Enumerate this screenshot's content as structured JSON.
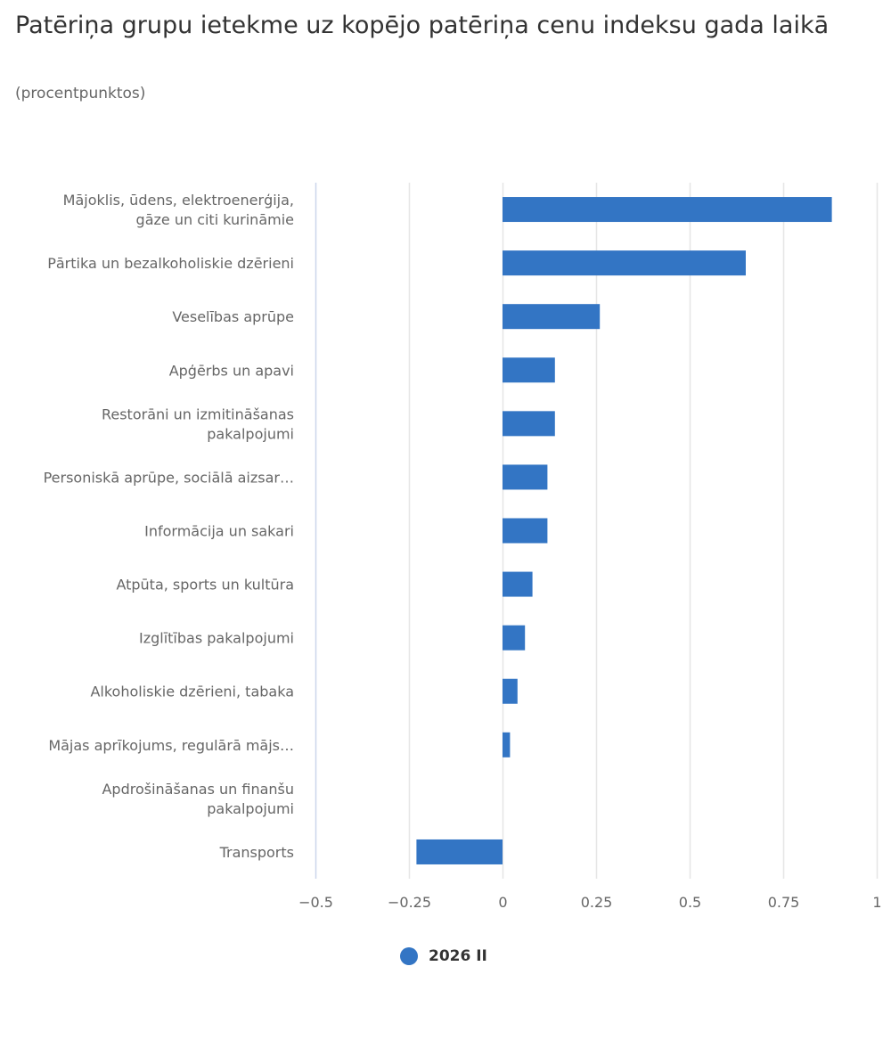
{
  "chart_data": {
    "type": "bar",
    "orientation": "horizontal",
    "title": "Patēriņa grupu ietekme uz kopējo patēriņa cenu indeksu gada laikā",
    "subtitle": "(procentpunktos)",
    "xlabel": "",
    "ylabel": "",
    "xlim": [
      -0.5,
      1
    ],
    "xticks": [
      -0.5,
      -0.25,
      0,
      0.25,
      0.5,
      0.75,
      1
    ],
    "xtick_labels": [
      "−0.5",
      "−0.25",
      "0",
      "0.25",
      "0.5",
      "0.75",
      "1"
    ],
    "grid": true,
    "legend_position": "bottom-center",
    "categories": [
      [
        "Mājoklis, ūdens, elektroenerģija,",
        "gāze un citi kurināmie"
      ],
      [
        "Pārtika un bezalkoholiskie dzērieni"
      ],
      [
        "Veselības aprūpe"
      ],
      [
        "Apģērbs un apavi"
      ],
      [
        "Restorāni un izmitināšanas",
        "pakalpojumi"
      ],
      [
        "Personiskā aprūpe, sociālā aizsar…"
      ],
      [
        "Informācija un sakari"
      ],
      [
        "Atpūta, sports un kultūra"
      ],
      [
        "Izglītības pakalpojumi"
      ],
      [
        "Alkoholiskie dzērieni, tabaka"
      ],
      [
        "Mājas aprīkojums, regulārā mājs…"
      ],
      [
        "Apdrošināšanas un finanšu",
        "pakalpojumi"
      ],
      [
        "Transports"
      ]
    ],
    "series": [
      {
        "name": "2026 II",
        "color": "#3375c4",
        "values": [
          0.88,
          0.65,
          0.26,
          0.14,
          0.14,
          0.12,
          0.12,
          0.08,
          0.06,
          0.04,
          0.02,
          0.0,
          -0.23
        ]
      }
    ]
  },
  "colors": {
    "title": "#333333",
    "subtitle": "#666666",
    "axis_line": "#ccd6eb",
    "gridline": "#e6e6e6",
    "labels": "#666666"
  }
}
